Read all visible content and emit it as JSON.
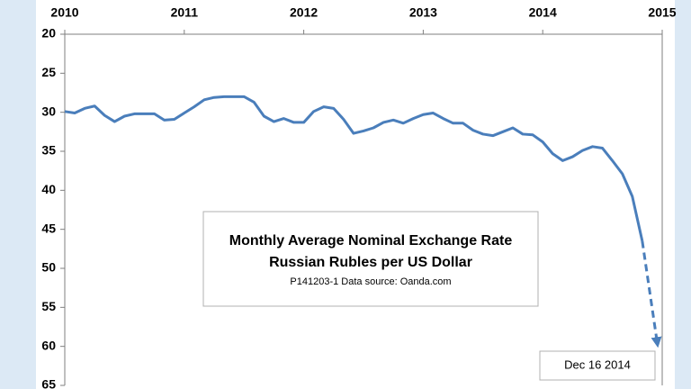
{
  "chart_data": {
    "type": "line",
    "title": "Monthly Average Nominal Exchange Rate",
    "subtitle": "Russian Rubles per US Dollar",
    "source": "P141203-1 Data source: Oanda.com",
    "annotation": "Dec 16 2014",
    "x": [
      2010,
      2010.083,
      2010.167,
      2010.25,
      2010.333,
      2010.417,
      2010.5,
      2010.583,
      2010.667,
      2010.75,
      2010.833,
      2010.917,
      2011,
      2011.083,
      2011.167,
      2011.25,
      2011.333,
      2011.417,
      2011.5,
      2011.583,
      2011.667,
      2011.75,
      2011.833,
      2011.917,
      2012,
      2012.083,
      2012.167,
      2012.25,
      2012.333,
      2012.417,
      2012.5,
      2012.583,
      2012.667,
      2012.75,
      2012.833,
      2012.917,
      2013,
      2013.083,
      2013.167,
      2013.25,
      2013.333,
      2013.417,
      2013.5,
      2013.583,
      2013.667,
      2013.75,
      2013.833,
      2013.917,
      2014,
      2014.083,
      2014.167,
      2014.25,
      2014.333,
      2014.417,
      2014.5,
      2014.583,
      2014.667,
      2014.75,
      2014.833
    ],
    "series": [
      {
        "color": "#4a7ebb",
        "values": [
          29.9,
          30.1,
          29.5,
          29.2,
          30.4,
          31.2,
          30.5,
          30.2,
          30.2,
          30.2,
          31.0,
          30.9,
          30.1,
          29.3,
          28.4,
          28.1,
          28.0,
          28.0,
          28.0,
          28.7,
          30.5,
          31.2,
          30.8,
          31.3,
          31.3,
          29.9,
          29.3,
          29.5,
          30.9,
          32.7,
          32.4,
          32.0,
          31.3,
          31.0,
          31.4,
          30.8,
          30.3,
          30.1,
          30.8,
          31.4,
          31.4,
          32.3,
          32.8,
          33.0,
          32.5,
          32.0,
          32.8,
          32.9,
          33.8,
          35.3,
          36.2,
          35.7,
          34.9,
          34.4,
          34.6,
          36.2,
          37.9,
          40.8,
          46.5
        ]
      },
      {
        "color": "#4a7ebb",
        "dashed": true,
        "x": [
          2014.833,
          2014.958
        ],
        "values": [
          46.5,
          59.5
        ]
      }
    ],
    "xlim": [
      2010,
      2015
    ],
    "xticks": [
      2010,
      2011,
      2012,
      2013,
      2014,
      2015
    ],
    "ylim": [
      20,
      65
    ],
    "yticks": [
      20,
      25,
      30,
      35,
      40,
      45,
      50,
      55,
      60,
      65
    ],
    "y_inverted": true,
    "x_axis_position": "top",
    "grid": false
  }
}
